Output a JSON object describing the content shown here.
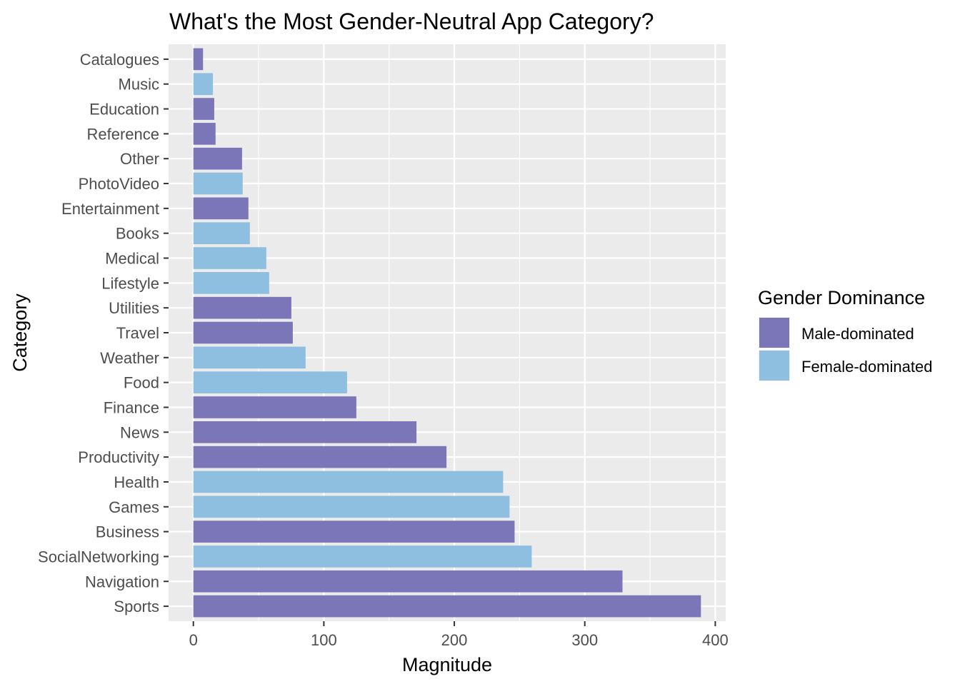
{
  "chart_data": {
    "type": "bar",
    "orientation": "horizontal",
    "title": "What's the Most Gender-Neutral App Category?",
    "xlabel": "Magnitude",
    "ylabel": "Category",
    "xlim": [
      -19,
      408
    ],
    "xticks": [
      0,
      100,
      200,
      300,
      400
    ],
    "grid": true,
    "legend": {
      "title": "Gender Dominance",
      "placement": "right",
      "entries": [
        {
          "name": "Male-dominated",
          "color": "#7B76B7"
        },
        {
          "name": "Female-dominated",
          "color": "#8EBEE0"
        }
      ]
    },
    "categories": [
      "Catalogues",
      "Music",
      "Education",
      "Reference",
      "Other",
      "PhotoVideo",
      "Entertainment",
      "Books",
      "Medical",
      "Lifestyle",
      "Utilities",
      "Travel",
      "Weather",
      "Food",
      "Finance",
      "News",
      "Productivity",
      "Health",
      "Games",
      "Business",
      "SocialNetworking",
      "Navigation",
      "Sports"
    ],
    "values": [
      7.4,
      15,
      16,
      17,
      37.3,
      37.8,
      42.2,
      43.3,
      55.9,
      58.1,
      75.1,
      76.2,
      86,
      117.8,
      124.9,
      171,
      194,
      237.4,
      242.3,
      246.2,
      259.3,
      328.9,
      389
    ],
    "groups": [
      "Male-dominated",
      "Female-dominated",
      "Male-dominated",
      "Male-dominated",
      "Male-dominated",
      "Female-dominated",
      "Male-dominated",
      "Female-dominated",
      "Female-dominated",
      "Female-dominated",
      "Male-dominated",
      "Male-dominated",
      "Female-dominated",
      "Female-dominated",
      "Male-dominated",
      "Male-dominated",
      "Male-dominated",
      "Female-dominated",
      "Female-dominated",
      "Male-dominated",
      "Female-dominated",
      "Male-dominated",
      "Male-dominated"
    ]
  }
}
